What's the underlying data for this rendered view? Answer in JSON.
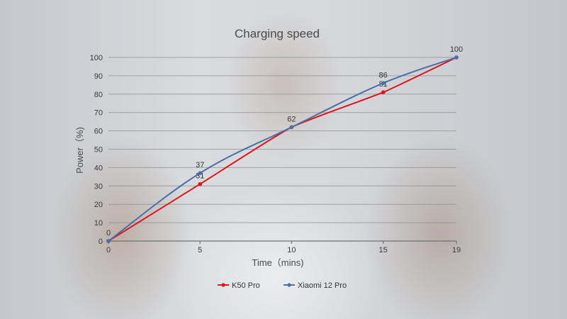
{
  "chart_data": {
    "type": "line",
    "title": "Charging speed",
    "xlabel": "Time（mins)",
    "ylabel": "Power（%)",
    "x": [
      0,
      5,
      10,
      15,
      19
    ],
    "x_ticks": [
      "0",
      "5",
      "10",
      "15",
      "19"
    ],
    "ylim": [
      0,
      100
    ],
    "y_ticks": [
      "0",
      "10",
      "20",
      "30",
      "40",
      "50",
      "60",
      "70",
      "80",
      "90",
      "100"
    ],
    "grid": true,
    "legend_position": "bottom",
    "series": [
      {
        "name": "K50 Pro",
        "color": "#e0151b",
        "values": [
          0,
          31,
          62,
          81,
          100
        ],
        "labels": [
          "",
          "31",
          "",
          "81",
          ""
        ]
      },
      {
        "name": "Xiaomi 12 Pro",
        "color": "#4a6fa8",
        "values": [
          0,
          37,
          62,
          86,
          100
        ],
        "labels": [
          "0",
          "37",
          "62",
          "86",
          "100"
        ]
      }
    ]
  }
}
